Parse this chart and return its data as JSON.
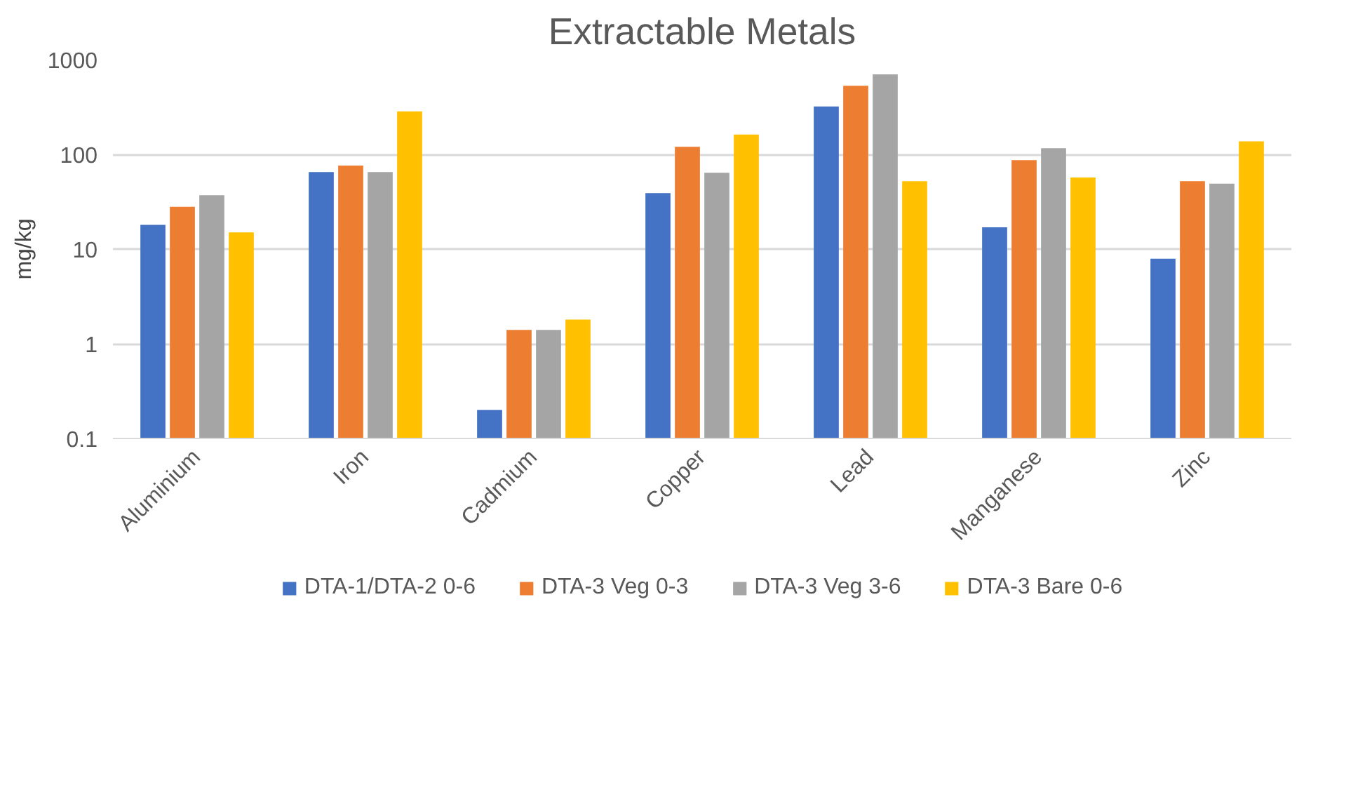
{
  "chart_data": {
    "type": "bar",
    "title": "Extractable Metals",
    "ylabel": "mg/kg",
    "log": "y",
    "grid": "y",
    "legend": "bottom",
    "categories": [
      "Aluminium",
      "Iron",
      "Cadmium",
      "Copper",
      "Lead",
      "Manganese",
      "Zinc"
    ],
    "ylim": [
      0.1,
      1000
    ],
    "yticks": [
      0.1,
      1,
      10,
      100,
      1000
    ],
    "series": [
      {
        "name": "DTA-1/DTA-2 0-6",
        "color": "#4472c4",
        "values": [
          18,
          65,
          0.2,
          39,
          320,
          17,
          7.9
        ]
      },
      {
        "name": "DTA-3 Veg 0-3",
        "color": "#ed7d31",
        "values": [
          28,
          76,
          1.4,
          120,
          530,
          87,
          52
        ]
      },
      {
        "name": "DTA-3 Veg 3-6",
        "color": "#a5a5a5",
        "values": [
          37,
          65,
          1.4,
          64,
          700,
          116,
          49
        ]
      },
      {
        "name": "DTA-3 Bare 0-6",
        "color": "#ffc000",
        "values": [
          15,
          284,
          1.8,
          162,
          52,
          57,
          137
        ]
      }
    ]
  }
}
